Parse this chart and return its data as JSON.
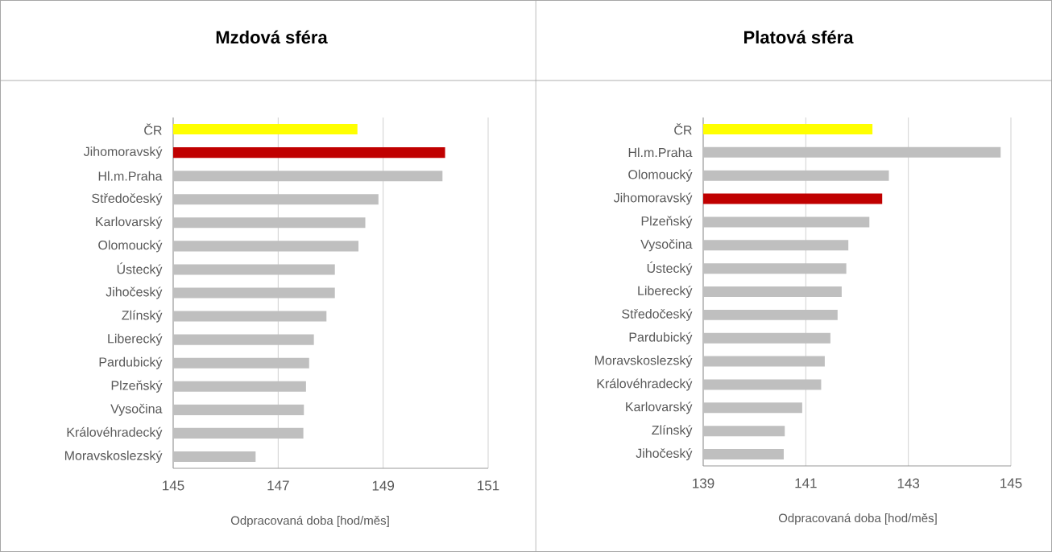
{
  "chart_data": [
    {
      "type": "bar",
      "orientation": "horizontal",
      "title": "Mzdová sféra",
      "xlabel": "Odpracovaná doba [hod/měs]",
      "categories": [
        "ČR",
        "Jihomoravský",
        "Hl.m.Praha",
        "Středočeský",
        "Karlovarský",
        "Olomoucký",
        "Ústecký",
        "Jihočeský",
        "Zlínský",
        "Liberecký",
        "Pardubický",
        "Plzeňský",
        "Vysočina",
        "Královéhradecký",
        "Moravskoslezský"
      ],
      "values": [
        148.51,
        150.18,
        150.13,
        148.91,
        148.66,
        148.53,
        148.08,
        148.08,
        147.92,
        147.68,
        147.59,
        147.53,
        147.49,
        147.48,
        146.57
      ],
      "colors": [
        "#ffff00",
        "#c00000",
        "#bfbfbf",
        "#bfbfbf",
        "#bfbfbf",
        "#bfbfbf",
        "#bfbfbf",
        "#bfbfbf",
        "#bfbfbf",
        "#bfbfbf",
        "#bfbfbf",
        "#bfbfbf",
        "#bfbfbf",
        "#bfbfbf",
        "#bfbfbf"
      ],
      "xlim": [
        145,
        151
      ],
      "xticks": [
        145,
        147,
        149,
        151
      ],
      "grid": "x"
    },
    {
      "type": "bar",
      "orientation": "horizontal",
      "title": "Platová sféra",
      "xlabel": "Odpracovaná doba [hod/měs]",
      "categories": [
        "ČR",
        "Hl.m.Praha",
        "Olomoucký",
        "Jihomoravský",
        "Plzeňský",
        "Vysočina",
        "Ústecký",
        "Liberecký",
        "Středočeský",
        "Pardubický",
        "Moravskoslezský",
        "Královéhradecký",
        "Karlovarský",
        "Zlínský",
        "Jihočeský"
      ],
      "values": [
        142.3,
        144.8,
        142.62,
        142.49,
        142.24,
        141.83,
        141.79,
        141.7,
        141.62,
        141.48,
        141.37,
        141.3,
        140.93,
        140.59,
        140.57
      ],
      "colors": [
        "#ffff00",
        "#bfbfbf",
        "#bfbfbf",
        "#c00000",
        "#bfbfbf",
        "#bfbfbf",
        "#bfbfbf",
        "#bfbfbf",
        "#bfbfbf",
        "#bfbfbf",
        "#bfbfbf",
        "#bfbfbf",
        "#bfbfbf",
        "#bfbfbf",
        "#bfbfbf"
      ],
      "xlim": [
        139,
        145
      ],
      "xticks": [
        139,
        141,
        143,
        145
      ],
      "grid": "x"
    }
  ]
}
